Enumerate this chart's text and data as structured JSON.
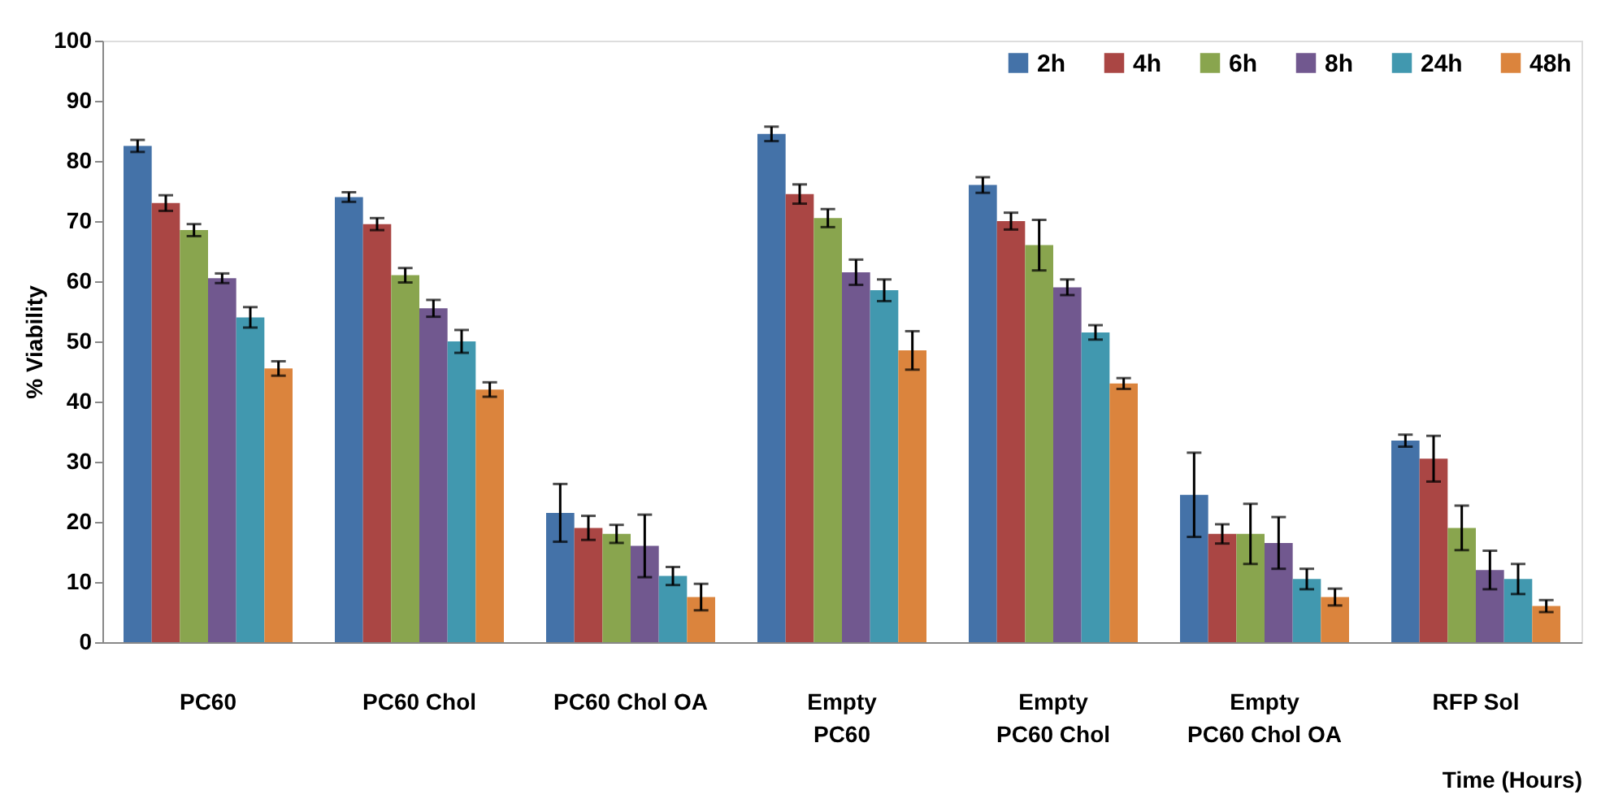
{
  "chart_data": {
    "type": "bar",
    "xlabel": "Time (Hours)",
    "ylabel": "% Viability",
    "categories": [
      "PC60",
      "PC60 Chol",
      "PC60 Chol OA",
      "Empty\nPC60",
      "Empty\nPC60 Chol",
      "Empty\nPC60 Chol OA",
      "RFP Sol"
    ],
    "series": [
      {
        "name": "2h",
        "color": "#4472a8",
        "values": [
          82.5,
          74,
          21.5,
          84.5,
          76,
          24.5,
          33.5
        ],
        "errors": [
          1,
          0.8,
          4.8,
          1.2,
          1.3,
          7,
          1
        ]
      },
      {
        "name": "4h",
        "color": "#aa4644",
        "values": [
          73,
          69.5,
          19,
          74.5,
          70,
          18,
          30.5
        ],
        "errors": [
          1.3,
          1,
          2,
          1.6,
          1.4,
          1.6,
          3.8
        ]
      },
      {
        "name": "6h",
        "color": "#89a54e",
        "values": [
          68.5,
          61,
          18,
          70.5,
          66,
          18,
          19
        ],
        "errors": [
          1,
          1.2,
          1.5,
          1.5,
          4.2,
          5,
          3.7
        ]
      },
      {
        "name": "8h",
        "color": "#71588f",
        "values": [
          60.5,
          55.5,
          16,
          61.5,
          59,
          16.5,
          12
        ],
        "errors": [
          0.8,
          1.4,
          5.2,
          2.1,
          1.3,
          4.3,
          3.2
        ]
      },
      {
        "name": "24h",
        "color": "#4198af",
        "values": [
          54,
          50,
          11,
          58.5,
          51.5,
          10.5,
          10.5
        ],
        "errors": [
          1.7,
          1.9,
          1.5,
          1.8,
          1.2,
          1.7,
          2.5
        ]
      },
      {
        "name": "48h",
        "color": "#db843d",
        "values": [
          45.5,
          42,
          7.5,
          48.5,
          43,
          7.5,
          6
        ],
        "errors": [
          1.2,
          1.2,
          2.2,
          3.2,
          0.9,
          1.4,
          1
        ]
      }
    ],
    "ylim": [
      0,
      100
    ],
    "yticks": [
      0,
      10,
      20,
      30,
      40,
      50,
      60,
      70,
      80,
      90,
      100
    ],
    "grid": false,
    "legend": "top right"
  }
}
